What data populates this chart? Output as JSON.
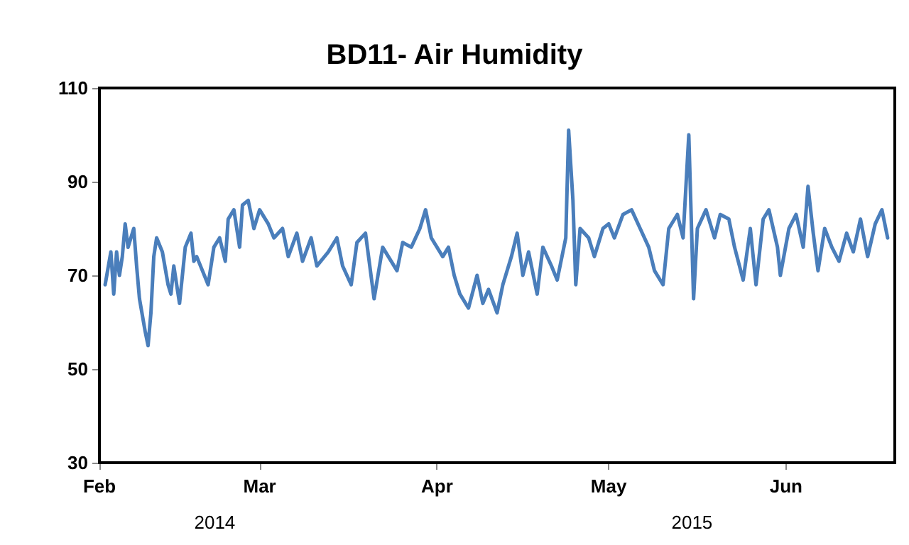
{
  "chart_data": {
    "type": "line",
    "title": "BD11- Air Humidity",
    "x": [
      "--02-02",
      "--02-03",
      "--02-03T12:00",
      "--02-04",
      "--02-04T12:00",
      "--02-05",
      "--02-05T12:00",
      "--02-06",
      "--02-07",
      "--02-07T12:00",
      "--02-08",
      "--02-09",
      "--02-09T12:00",
      "--02-10",
      "--02-10T12:00",
      "--02-11",
      "--02-12",
      "--02-13",
      "--02-13T12:00",
      "--02-14",
      "--02-15",
      "--02-16",
      "--02-17",
      "--02-17T12:00",
      "--02-18",
      "--02-19",
      "--02-20",
      "--02-21",
      "--02-22",
      "--02-23",
      "--02-23T12:00",
      "--02-24T12:00",
      "--02-25T12:00",
      "--02-26",
      "--02-27",
      "--02-28",
      "--03-01",
      "--03-02T12:00",
      "--03-03T12:00",
      "--03-05",
      "--03-06",
      "--03-07T12:00",
      "--03-08T12:00",
      "--03-10",
      "--03-11",
      "--03-13",
      "--03-14T12:00",
      "--03-15T12:00",
      "--03-17",
      "--03-18",
      "--03-19T12:00",
      "--03-21",
      "--03-22T12:00",
      "--03-23T12:00",
      "--03-25",
      "--03-26",
      "--03-27T12:00",
      "--03-29",
      "--03-30",
      "--03-31",
      "--04-02",
      "--04-03",
      "--04-04",
      "--04-05",
      "--04-06T12:00",
      "--04-08",
      "--04-09",
      "--04-10",
      "--04-11T12:00",
      "--04-12T12:00",
      "--04-14",
      "--04-15",
      "--04-16",
      "--04-17",
      "--04-18T12:00",
      "--04-19T12:00",
      "--04-21",
      "--04-22",
      "--04-23T12:00",
      "--04-24",
      "--04-24T18:00",
      "--04-25T06:00",
      "--04-26",
      "--04-27T12:00",
      "--04-28T12:00",
      "--04-30",
      "--05-01",
      "--05-02",
      "--05-03T12:00",
      "--05-05",
      "--05-06T12:00",
      "--05-08",
      "--05-09",
      "--05-10T12:00",
      "--05-11T12:00",
      "--05-13",
      "--05-14",
      "--05-15",
      "--05-15T20:00",
      "--05-16T12:00",
      "--05-18",
      "--05-19T12:00",
      "--05-20T12:00",
      "--05-22",
      "--05-23",
      "--05-24T12:00",
      "--05-25T18:00",
      "--05-26T18:00",
      "--05-28",
      "--05-29",
      "--05-30T12:00",
      "--05-31",
      "--06-01T12:00",
      "--06-02T18:00",
      "--06-04",
      "--06-04T20:00",
      "--06-05T18:00",
      "--06-06T14:00",
      "--06-07T18:00",
      "--06-09",
      "--06-10T06:00",
      "--06-11T14:00",
      "--06-12T18:00",
      "--06-14",
      "--06-15T06:00",
      "--06-16T14:00",
      "--06-17T18:00",
      "--06-18T18:00"
    ],
    "series": [
      {
        "color": "#4a7ebb",
        "values": [
          68,
          75,
          66,
          75,
          70,
          74,
          81,
          76,
          80,
          72,
          65,
          58,
          55,
          62,
          74,
          78,
          75,
          68,
          66,
          72,
          64,
          76,
          79,
          73,
          74,
          71,
          68,
          76,
          78,
          73,
          82,
          84,
          76,
          85,
          86,
          80,
          84,
          81,
          78,
          80,
          74,
          79,
          73,
          78,
          72,
          75,
          78,
          72,
          68,
          77,
          79,
          65,
          76,
          74,
          71,
          77,
          76,
          80,
          84,
          78,
          74,
          76,
          70,
          66,
          63,
          70,
          64,
          67,
          62,
          68,
          74,
          79,
          70,
          75,
          66,
          76,
          72,
          69,
          78,
          101,
          86,
          68,
          80,
          78,
          74,
          80,
          81,
          78,
          83,
          84,
          80,
          76,
          71,
          68,
          80,
          83,
          78,
          100,
          65,
          80,
          84,
          78,
          83,
          82,
          76,
          69,
          80,
          68,
          82,
          84,
          76,
          70,
          80,
          83,
          76,
          89,
          79,
          71,
          80,
          76,
          73,
          79,
          75,
          82,
          74,
          81,
          84,
          78
        ]
      }
    ],
    "xlim": [
      "--02-01",
      "--06-20"
    ],
    "xticks": [
      {
        "value": "--02-01",
        "label": "Feb"
      },
      {
        "value": "--03-01",
        "label": "Mar"
      },
      {
        "value": "--04-01",
        "label": "Apr"
      },
      {
        "value": "--05-01",
        "label": "May"
      },
      {
        "value": "--06-01",
        "label": "Jun"
      }
    ],
    "ylim": [
      30,
      110
    ],
    "yticks": [
      30,
      50,
      70,
      90,
      110
    ],
    "grid": false,
    "marker": "none",
    "line_style": "solid",
    "annotations": [
      "2014",
      "2015"
    ]
  }
}
